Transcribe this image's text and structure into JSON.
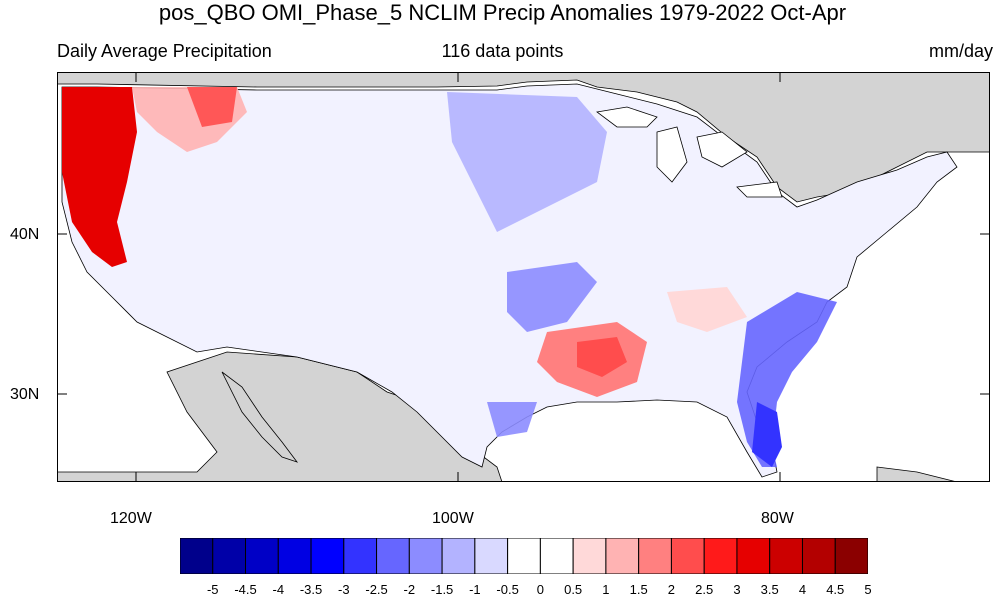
{
  "title": "pos_QBO OMI_Phase_5 NCLIM Precip Anomalies 1979-2022 Oct-Apr",
  "subtitle_left": "Daily Average Precipitation",
  "subtitle_center": "116 data points",
  "subtitle_right": "mm/day",
  "axes": {
    "lat_labels": [
      "40N",
      "30N"
    ],
    "lon_labels": [
      "120W",
      "100W",
      "80W"
    ]
  },
  "colorbar": {
    "labels": [
      "-5",
      "-4.5",
      "-4",
      "-3.5",
      "-3",
      "-2.5",
      "-2",
      "-1.5",
      "-1",
      "-0.5",
      "0",
      "0.5",
      "1",
      "1.5",
      "2",
      "2.5",
      "3",
      "3.5",
      "4",
      "4.5",
      "5"
    ],
    "colors": [
      "#00008b",
      "#0000a8",
      "#0000c6",
      "#0000e3",
      "#0000ff",
      "#3333ff",
      "#6666ff",
      "#8c8cff",
      "#b3b3ff",
      "#d9d9ff",
      "#ffffff",
      "#ffffff",
      "#ffd9d9",
      "#ffb3b3",
      "#ff8080",
      "#ff4d4d",
      "#ff1a1a",
      "#e60000",
      "#cc0000",
      "#b30000",
      "#8b0000"
    ]
  },
  "colors": {
    "land_outside": "#d3d3d3",
    "ocean": "#ffffff",
    "positive": "#ff4d4d",
    "negative": "#6666ff"
  }
}
